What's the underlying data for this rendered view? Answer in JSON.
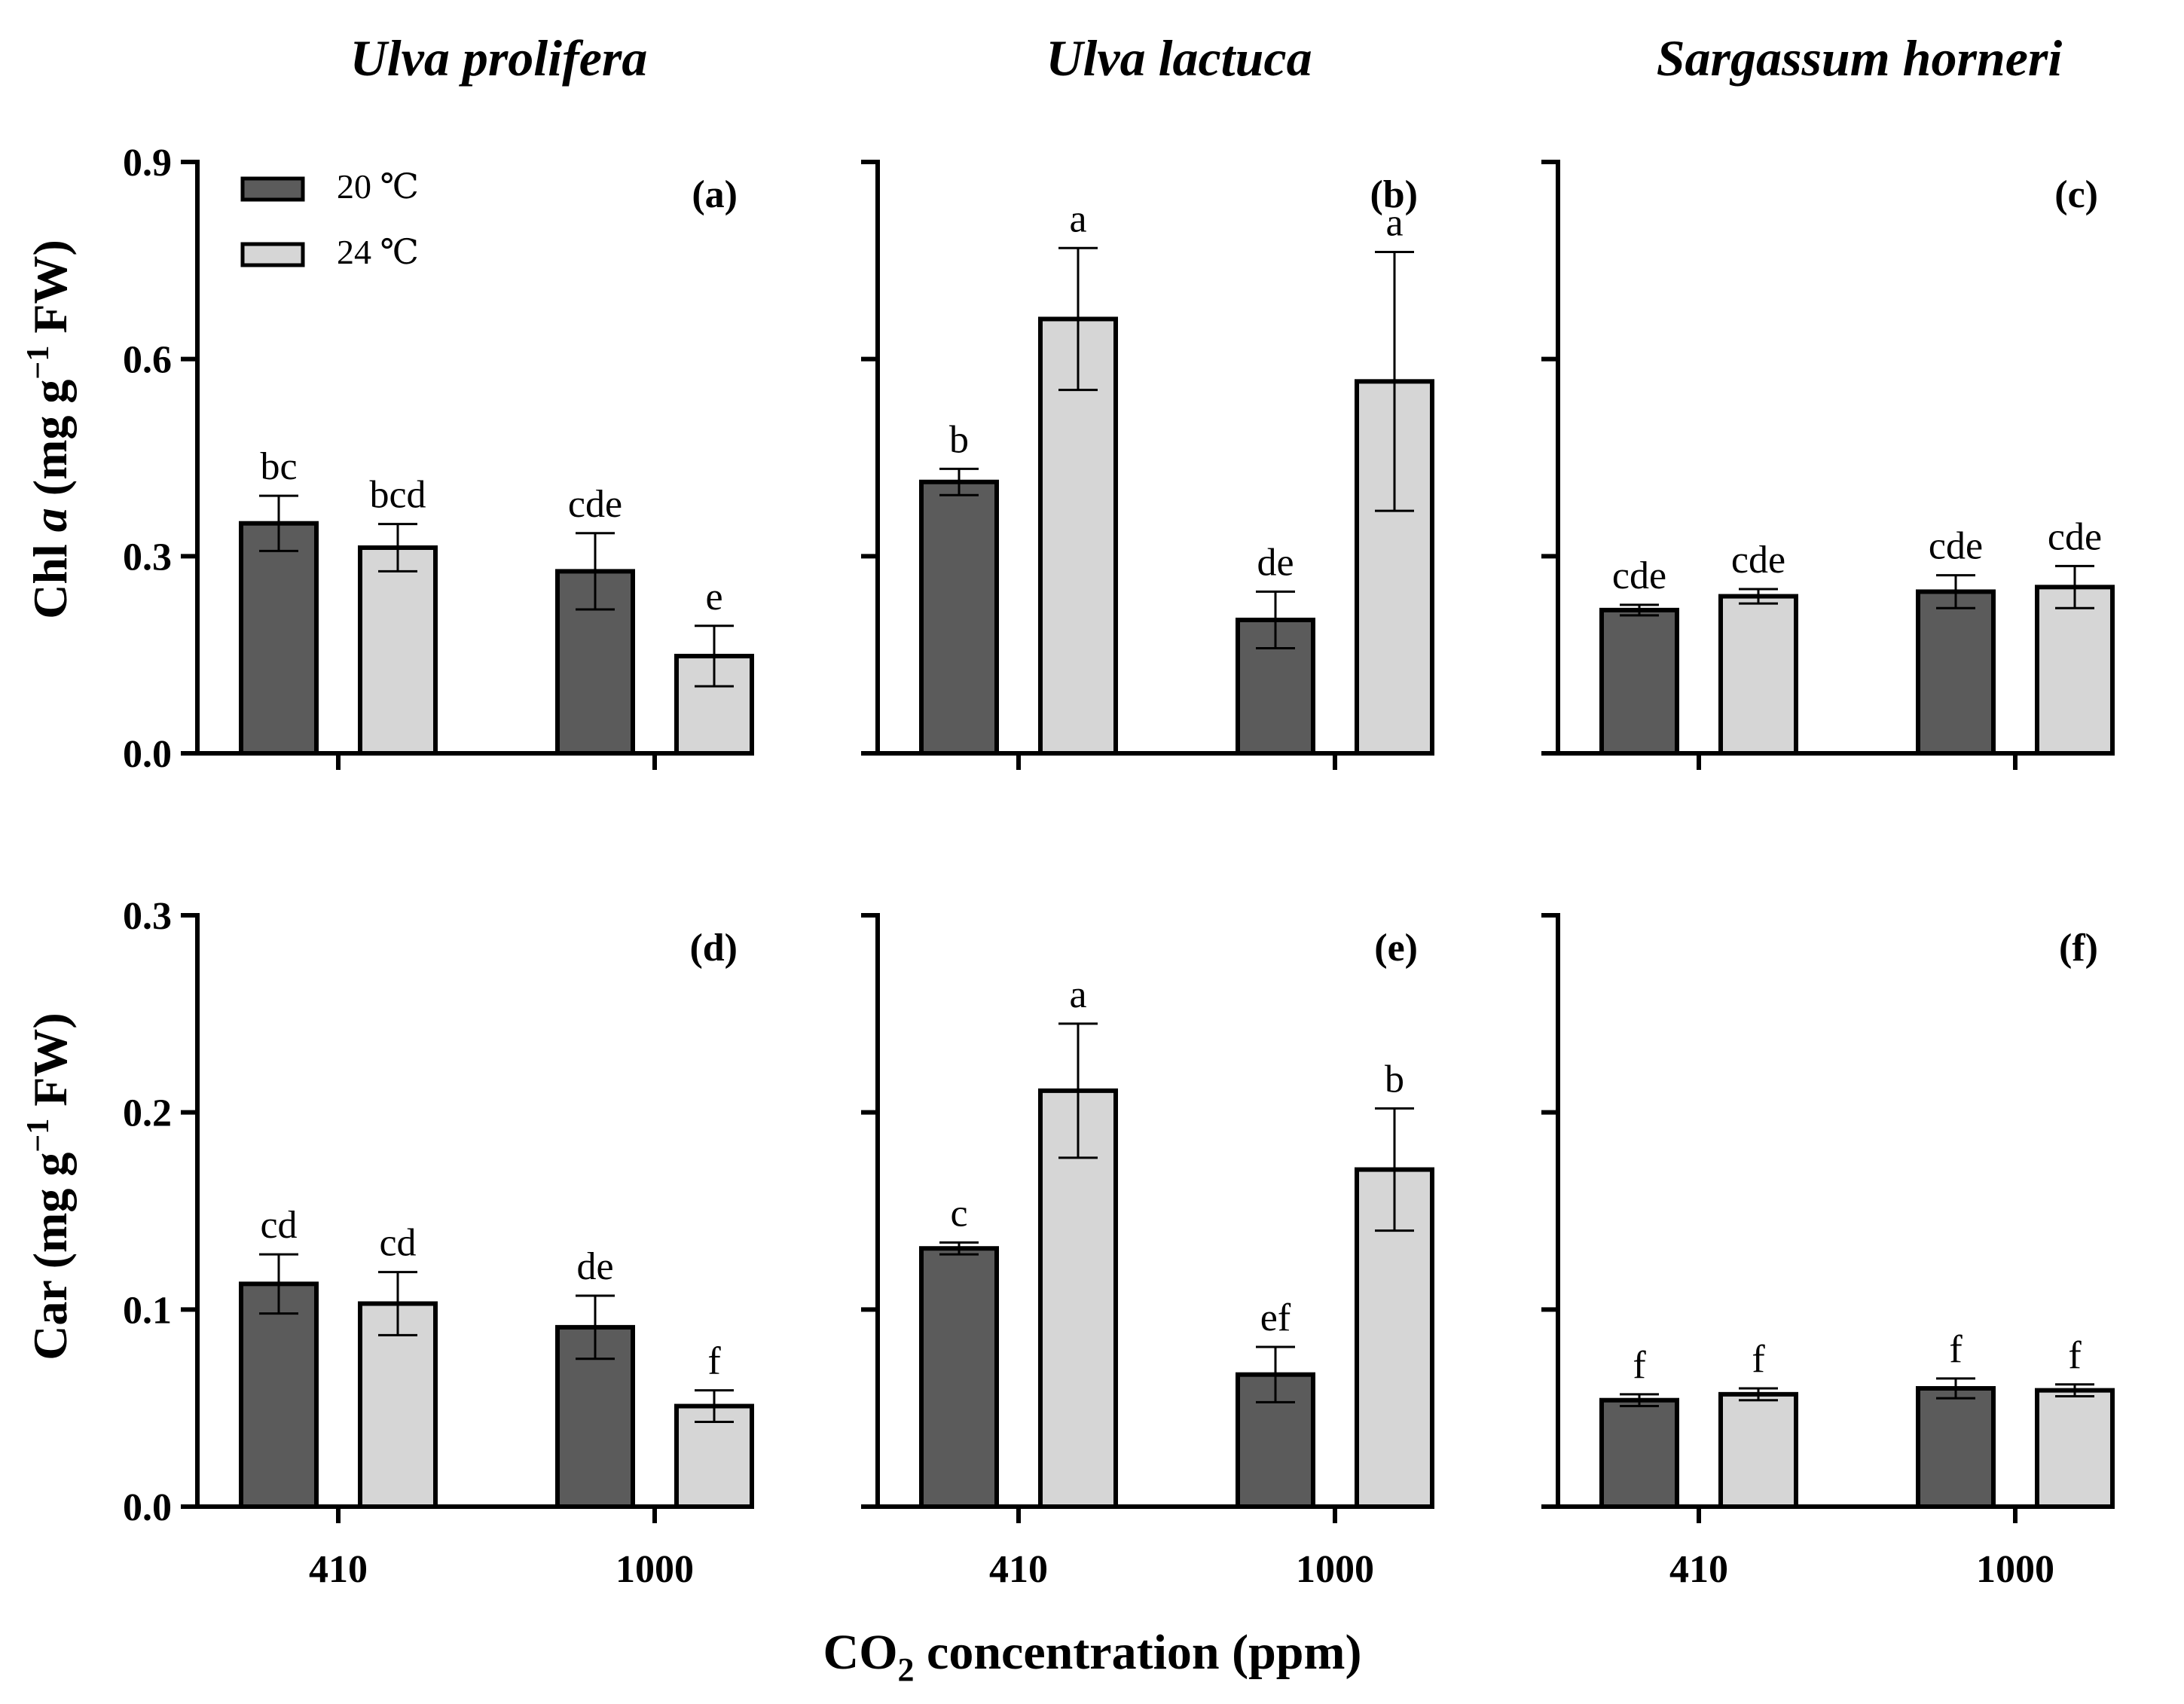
{
  "figure": {
    "x_axis_title": {
      "prefix": "CO",
      "sub": "2",
      "suffix": " concentration (ppm)"
    },
    "legend": [
      {
        "label": "20 ℃",
        "color": "#5b5b5b"
      },
      {
        "label": "24 ℃",
        "color": "#d6d6d6"
      }
    ],
    "colors": {
      "dark": "#5b5b5b",
      "light": "#d6d6d6",
      "stroke": "#000000"
    },
    "species": [
      "Ulva prolifera",
      "Ulva lactuca",
      "Sargassum horneri"
    ],
    "row_titles": [
      {
        "pre": "Chl ",
        "italic": "a",
        "mid": " (mg g",
        "sup": "−1",
        "post": " FW)"
      },
      {
        "pre": "Car",
        "italic": "",
        "mid": " (mg g",
        "sup": "−1",
        "post": " FW)"
      }
    ]
  },
  "chart_data": [
    {
      "type": "bar",
      "panel": "(a)",
      "title": "Ulva prolifera",
      "row": 0,
      "col": 0,
      "categories": [
        "410",
        "1000"
      ],
      "ylim": [
        0,
        0.9
      ],
      "yticks": [
        "0.0",
        "0.3",
        "0.6",
        "0.9"
      ],
      "show_yticks": true,
      "ylabel": "Chl a (mg g−1 FW)",
      "xlabel": "",
      "legend": true,
      "series": [
        {
          "name": "20 ℃",
          "values": [
            0.35,
            0.277
          ],
          "errors": [
            0.042,
            0.058
          ],
          "labels": [
            "bc",
            "cde"
          ]
        },
        {
          "name": "24 ℃",
          "values": [
            0.313,
            0.148
          ],
          "errors": [
            0.036,
            0.046
          ],
          "labels": [
            "bcd",
            "e"
          ]
        }
      ]
    },
    {
      "type": "bar",
      "panel": "(b)",
      "title": "Ulva lactuca",
      "row": 0,
      "col": 1,
      "categories": [
        "410",
        "1000"
      ],
      "ylim": [
        0,
        0.9
      ],
      "yticks": [
        "0.0",
        "0.3",
        "0.6",
        "0.9"
      ],
      "show_yticks": false,
      "ylabel": "",
      "xlabel": "",
      "legend": false,
      "series": [
        {
          "name": "20 ℃",
          "values": [
            0.413,
            0.203
          ],
          "errors": [
            0.02,
            0.043
          ],
          "labels": [
            "b",
            "de"
          ]
        },
        {
          "name": "24 ℃",
          "values": [
            0.661,
            0.566
          ],
          "errors": [
            0.108,
            0.197
          ],
          "labels": [
            "a",
            "a"
          ]
        }
      ]
    },
    {
      "type": "bar",
      "panel": "(c)",
      "title": "Sargassum horneri",
      "row": 0,
      "col": 2,
      "categories": [
        "410",
        "1000"
      ],
      "ylim": [
        0,
        0.9
      ],
      "yticks": [
        "0.0",
        "0.3",
        "0.6",
        "0.9"
      ],
      "show_yticks": false,
      "ylabel": "",
      "xlabel": "",
      "legend": false,
      "series": [
        {
          "name": "20 ℃",
          "values": [
            0.218,
            0.246
          ],
          "errors": [
            0.008,
            0.025
          ],
          "labels": [
            "cde",
            "cde"
          ]
        },
        {
          "name": "24 ℃",
          "values": [
            0.239,
            0.253
          ],
          "errors": [
            0.011,
            0.032
          ],
          "labels": [
            "cde",
            "cde"
          ]
        }
      ]
    },
    {
      "type": "bar",
      "panel": "(d)",
      "title": "Ulva prolifera",
      "row": 1,
      "col": 0,
      "categories": [
        "410",
        "1000"
      ],
      "ylim": [
        0,
        0.3
      ],
      "yticks": [
        "0.0",
        "0.1",
        "0.2",
        "0.3"
      ],
      "show_yticks": true,
      "ylabel": "Car (mg g−1 FW)",
      "xlabel": "CO2 concentration (ppm)",
      "legend": false,
      "series": [
        {
          "name": "20 ℃",
          "values": [
            0.113,
            0.091
          ],
          "errors": [
            0.015,
            0.016
          ],
          "labels": [
            "cd",
            "de"
          ]
        },
        {
          "name": "24 ℃",
          "values": [
            0.103,
            0.051
          ],
          "errors": [
            0.016,
            0.008
          ],
          "labels": [
            "cd",
            "f"
          ]
        }
      ]
    },
    {
      "type": "bar",
      "panel": "(e)",
      "title": "Ulva lactuca",
      "row": 1,
      "col": 1,
      "categories": [
        "410",
        "1000"
      ],
      "ylim": [
        0,
        0.3
      ],
      "yticks": [
        "0.0",
        "0.1",
        "0.2",
        "0.3"
      ],
      "show_yticks": false,
      "ylabel": "",
      "xlabel": "",
      "legend": false,
      "series": [
        {
          "name": "20 ℃",
          "values": [
            0.131,
            0.067
          ],
          "errors": [
            0.003,
            0.014
          ],
          "labels": [
            "c",
            "ef"
          ]
        },
        {
          "name": "24 ℃",
          "values": [
            0.211,
            0.171
          ],
          "errors": [
            0.034,
            0.031
          ],
          "labels": [
            "a",
            "b"
          ]
        }
      ]
    },
    {
      "type": "bar",
      "panel": "(f)",
      "title": "Sargassum horneri",
      "row": 1,
      "col": 2,
      "categories": [
        "410",
        "1000"
      ],
      "ylim": [
        0,
        0.3
      ],
      "yticks": [
        "0.0",
        "0.1",
        "0.2",
        "0.3"
      ],
      "show_yticks": false,
      "ylabel": "",
      "xlabel": "",
      "legend": false,
      "series": [
        {
          "name": "20 ℃",
          "values": [
            0.054,
            0.06
          ],
          "errors": [
            0.003,
            0.005
          ],
          "labels": [
            "f",
            "f"
          ]
        },
        {
          "name": "24 ℃",
          "values": [
            0.057,
            0.059
          ],
          "errors": [
            0.003,
            0.003
          ],
          "labels": [
            "f",
            "f"
          ]
        }
      ]
    }
  ]
}
